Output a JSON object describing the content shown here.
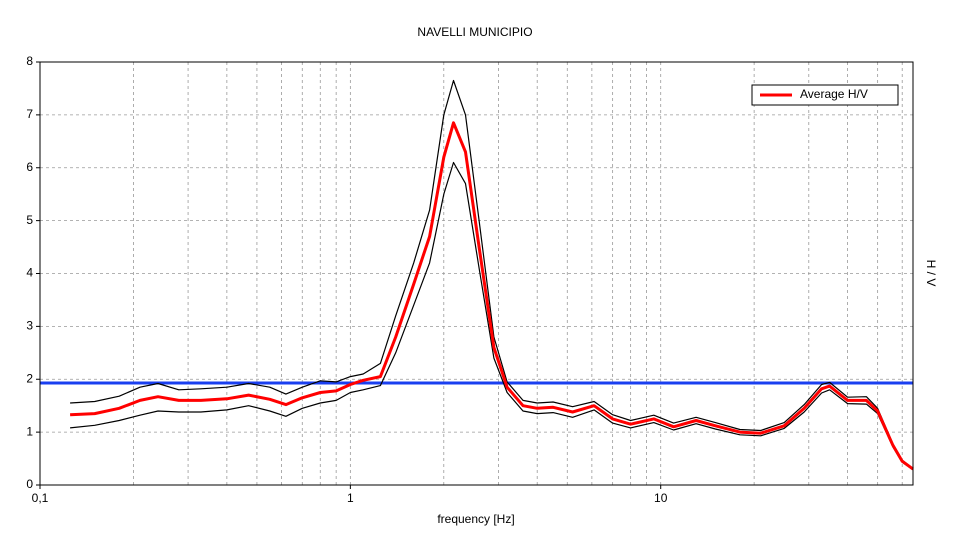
{
  "chart_data": {
    "type": "line",
    "title": "NAVELLI MUNICIPIO",
    "x_label": "frequency [Hz]",
    "y_label": "H / V",
    "x_log": true,
    "xlim": [
      0.1,
      65
    ],
    "ylim": [
      0,
      8
    ],
    "xticks": [
      {
        "value": 0.1,
        "label": "0,1"
      },
      1,
      10
    ],
    "xminor": [
      0.2,
      0.3,
      0.4,
      0.5,
      0.6,
      0.7,
      0.8,
      0.9,
      2,
      3,
      4,
      5,
      6,
      7,
      8,
      9,
      20,
      30,
      40,
      50,
      60
    ],
    "yticks": [
      0,
      1,
      2,
      3,
      4,
      5,
      6,
      7,
      8
    ],
    "grid": true,
    "legend": "top-right",
    "hline": {
      "value": 1.93,
      "color": "#1a3ff0"
    },
    "x": [
      0.125,
      0.15,
      0.18,
      0.21,
      0.24,
      0.28,
      0.33,
      0.4,
      0.47,
      0.55,
      0.62,
      0.7,
      0.8,
      0.9,
      1.0,
      1.1,
      1.25,
      1.4,
      1.6,
      1.8,
      2.0,
      2.15,
      2.35,
      2.6,
      2.9,
      3.2,
      3.6,
      4.0,
      4.5,
      5.2,
      6.1,
      7.0,
      8.0,
      9.5,
      11,
      13,
      15,
      18,
      21,
      25,
      29,
      33,
      35,
      40,
      46,
      50,
      56,
      60,
      65
    ],
    "series": [
      {
        "name": "Average H/V",
        "color": "#ff0000",
        "values": [
          1.33,
          1.35,
          1.45,
          1.6,
          1.67,
          1.6,
          1.6,
          1.63,
          1.7,
          1.62,
          1.52,
          1.65,
          1.75,
          1.78,
          1.9,
          1.98,
          2.05,
          2.8,
          3.8,
          4.7,
          6.2,
          6.85,
          6.3,
          4.5,
          2.6,
          1.85,
          1.5,
          1.45,
          1.47,
          1.38,
          1.5,
          1.25,
          1.15,
          1.25,
          1.1,
          1.22,
          1.12,
          1.0,
          0.98,
          1.12,
          1.45,
          1.82,
          1.87,
          1.6,
          1.6,
          1.4,
          0.75,
          0.45,
          0.3
        ]
      },
      {
        "color": "#000000",
        "values": [
          1.55,
          1.58,
          1.68,
          1.85,
          1.92,
          1.8,
          1.82,
          1.85,
          1.92,
          1.85,
          1.72,
          1.85,
          1.97,
          1.95,
          2.05,
          2.1,
          2.3,
          3.2,
          4.2,
          5.2,
          7.0,
          7.65,
          7.0,
          5.0,
          2.8,
          1.95,
          1.6,
          1.55,
          1.57,
          1.48,
          1.58,
          1.33,
          1.22,
          1.32,
          1.17,
          1.28,
          1.18,
          1.05,
          1.03,
          1.18,
          1.52,
          1.9,
          1.94,
          1.66,
          1.67,
          1.45,
          0.78,
          0.47,
          0.31
        ]
      },
      {
        "color": "#000000",
        "values": [
          1.08,
          1.13,
          1.22,
          1.32,
          1.4,
          1.38,
          1.38,
          1.42,
          1.5,
          1.4,
          1.3,
          1.45,
          1.55,
          1.6,
          1.75,
          1.8,
          1.88,
          2.5,
          3.4,
          4.2,
          5.5,
          6.1,
          5.7,
          4.1,
          2.4,
          1.75,
          1.4,
          1.35,
          1.37,
          1.28,
          1.42,
          1.17,
          1.08,
          1.18,
          1.04,
          1.16,
          1.06,
          0.95,
          0.93,
          1.07,
          1.38,
          1.74,
          1.8,
          1.54,
          1.53,
          1.35,
          0.72,
          0.43,
          0.29
        ]
      }
    ]
  }
}
